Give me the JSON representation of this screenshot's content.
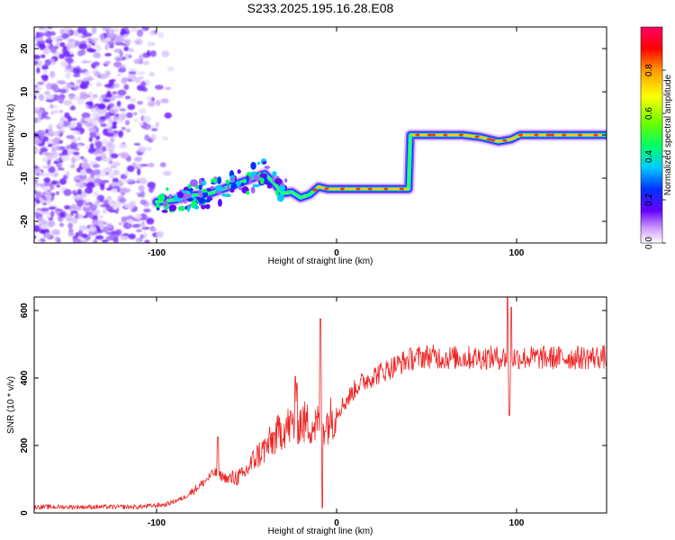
{
  "figure": {
    "title": "S233.2025.195.16.28.E08"
  },
  "chart_data": [
    {
      "type": "heatmap",
      "xlabel": "Height of straight line (km)",
      "ylabel": "Frequency (Hz)",
      "xlim": [
        -168,
        150
      ],
      "ylim": [
        -25,
        25
      ],
      "xticks": [
        -100,
        0,
        100
      ],
      "yticks": [
        20,
        10,
        0,
        -10,
        -20
      ],
      "colorbar": {
        "label": "Normalized spectral amplitude",
        "range": [
          0,
          1
        ],
        "ticks": [
          "0.0",
          "0.2",
          "0.4",
          "0.6",
          "0.8"
        ],
        "colors": [
          "#ffffff",
          "#cc99ff",
          "#6600ff",
          "#0033ff",
          "#00ccff",
          "#00ff66",
          "#66ff00",
          "#ffff00",
          "#ff9900",
          "#ff0000",
          "#ff0066"
        ]
      },
      "ridge": [
        {
          "x": -100,
          "y": -15.5
        },
        {
          "x": -90,
          "y": -15
        },
        {
          "x": -80,
          "y": -14
        },
        {
          "x": -70,
          "y": -13.5
        },
        {
          "x": -60,
          "y": -12
        },
        {
          "x": -50,
          "y": -10.5
        },
        {
          "x": -40,
          "y": -9
        },
        {
          "x": -35,
          "y": -11
        },
        {
          "x": -30,
          "y": -13.5
        },
        {
          "x": -25,
          "y": -13.2
        },
        {
          "x": -20,
          "y": -14.5
        },
        {
          "x": -15,
          "y": -13.8
        },
        {
          "x": -10,
          "y": -12
        },
        {
          "x": -5,
          "y": -12.5
        },
        {
          "x": 0,
          "y": -12.5
        },
        {
          "x": 10,
          "y": -12.5
        },
        {
          "x": 20,
          "y": -12.5
        },
        {
          "x": 30,
          "y": -12.5
        },
        {
          "x": 40,
          "y": -12.5
        },
        {
          "x": 41,
          "y": 0
        },
        {
          "x": 55,
          "y": 0
        },
        {
          "x": 70,
          "y": 0
        },
        {
          "x": 80,
          "y": -0.5
        },
        {
          "x": 90,
          "y": -1.5
        },
        {
          "x": 97,
          "y": -1
        },
        {
          "x": 102,
          "y": 0
        },
        {
          "x": 120,
          "y": 0
        },
        {
          "x": 135,
          "y": 0
        },
        {
          "x": 150,
          "y": 0
        }
      ],
      "noise_region": {
        "x_from": -168,
        "x_to": -90,
        "y_from": -25,
        "y_to": 25
      }
    },
    {
      "type": "line",
      "xlabel": "Height of straight line (km)",
      "ylabel": "SNR (10 * v/v)",
      "xlim": [
        -168,
        150
      ],
      "ylim": [
        0,
        640
      ],
      "xticks": [
        -100,
        0,
        100
      ],
      "yticks": [
        0,
        200,
        400,
        600
      ],
      "color": "#ee2222",
      "envelope": [
        {
          "x": -168,
          "y": 18
        },
        {
          "x": -140,
          "y": 18
        },
        {
          "x": -110,
          "y": 18
        },
        {
          "x": -95,
          "y": 25
        },
        {
          "x": -85,
          "y": 45
        },
        {
          "x": -75,
          "y": 85
        },
        {
          "x": -68,
          "y": 120
        },
        {
          "x": -60,
          "y": 100
        },
        {
          "x": -52,
          "y": 110
        },
        {
          "x": -45,
          "y": 165
        },
        {
          "x": -38,
          "y": 200
        },
        {
          "x": -30,
          "y": 250
        },
        {
          "x": -20,
          "y": 270
        },
        {
          "x": -12,
          "y": 260
        },
        {
          "x": -5,
          "y": 270
        },
        {
          "x": 0,
          "y": 300
        },
        {
          "x": 5,
          "y": 330
        },
        {
          "x": 12,
          "y": 380
        },
        {
          "x": 20,
          "y": 405
        },
        {
          "x": 30,
          "y": 430
        },
        {
          "x": 40,
          "y": 455
        },
        {
          "x": 50,
          "y": 465
        },
        {
          "x": 60,
          "y": 460
        },
        {
          "x": 80,
          "y": 460
        },
        {
          "x": 95,
          "y": 460
        },
        {
          "x": 110,
          "y": 460
        },
        {
          "x": 130,
          "y": 460
        },
        {
          "x": 150,
          "y": 462
        }
      ],
      "spikes": [
        {
          "x": -66,
          "y": 225
        },
        {
          "x": -23,
          "y": 405
        },
        {
          "x": -22,
          "y": 385
        },
        {
          "x": -9,
          "y": 575
        },
        {
          "x": -8,
          "y": 15
        },
        {
          "x": 95,
          "y": 640
        },
        {
          "x": 96,
          "y": 290
        },
        {
          "x": 97,
          "y": 610
        }
      ]
    }
  ]
}
